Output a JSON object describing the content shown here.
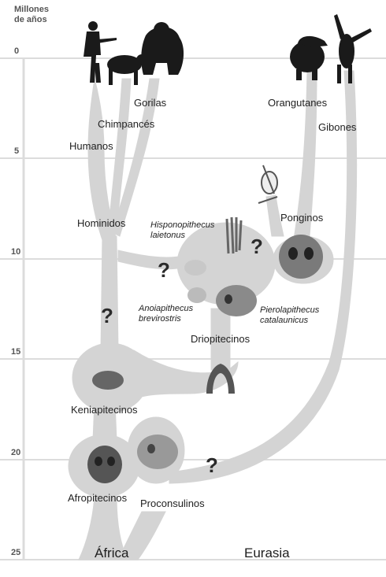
{
  "axis": {
    "title_line1": "Millones",
    "title_line2": "de años",
    "ticks": [
      "0",
      "5",
      "10",
      "15",
      "20",
      "25"
    ]
  },
  "regions": {
    "left": "África",
    "right": "Eurasia"
  },
  "labels": {
    "gorilas": "Gorilas",
    "chimpances": "Chimpancés",
    "humanos": "Humanos",
    "orangutanes": "Orangutanes",
    "gibones": "Gibones",
    "hominidos": "Hominidos",
    "ponginos": "Ponginos",
    "hispanopithecus_1": "Hisponopithecus",
    "hispanopithecus_2": "laietonus",
    "anoiapithecus_1": "Anoiapithecus",
    "anoiapithecus_2": "brevirostris",
    "pierolapithecus_1": "Pierolapithecus",
    "pierolapithecus_2": "catalaunicus",
    "driopitecinos": "Driopitecinos",
    "keniapitecinos": "Keniapitecinos",
    "afropitecinos": "Afropitecinos",
    "proconsulinos": "Proconsulinos"
  },
  "question_mark": "?",
  "colors": {
    "background": "#ffffff",
    "branch_fill": "#d4d4d4",
    "grid_line": "#dcdcdc",
    "text": "#222222",
    "silhouette": "#1a1a1a",
    "fossil": "#7a7a7a"
  },
  "icons": [
    "human-silhouette",
    "chimpanzee-silhouette",
    "gorilla-silhouette",
    "orangutan-silhouette",
    "gibbon-silhouette",
    "pongine-skeleton-icon",
    "hand-fossil-icon",
    "skull-fossil-icon",
    "jaw-fossil-icon"
  ]
}
